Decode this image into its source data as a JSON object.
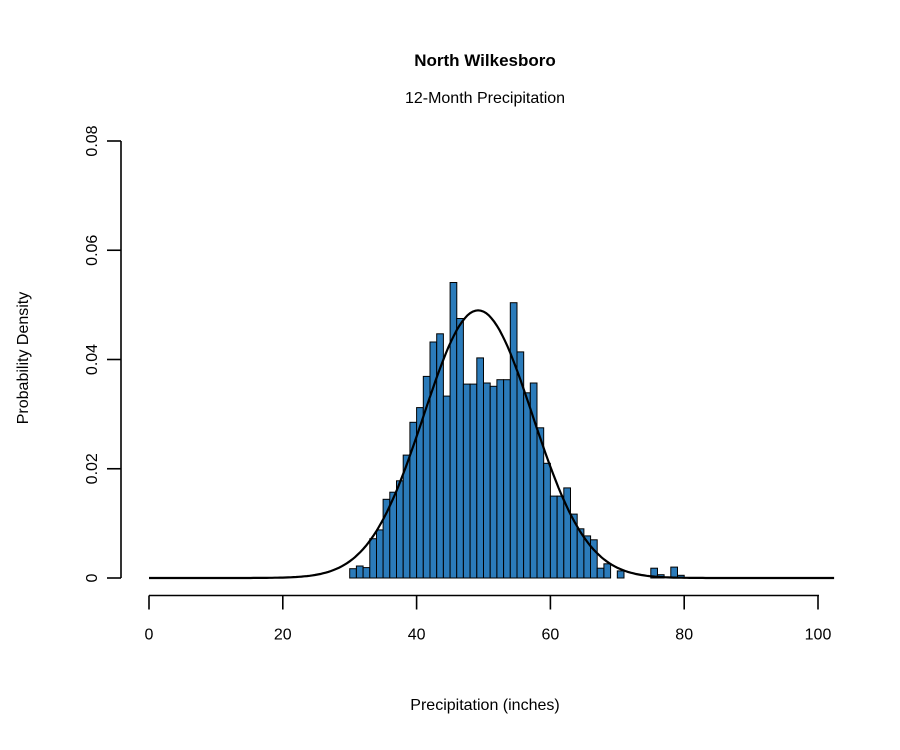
{
  "title": "North Wilkesboro",
  "subtitle": "12-Month Precipitation",
  "x_axis": {
    "label": "Precipitation (inches)",
    "ticks": [
      {
        "value": 0,
        "label": "0"
      },
      {
        "value": 20,
        "label": "20"
      },
      {
        "value": 40,
        "label": "40"
      },
      {
        "value": 60,
        "label": "60"
      },
      {
        "value": 80,
        "label": "80"
      },
      {
        "value": 100,
        "label": "100"
      }
    ],
    "range": [
      0,
      103
    ]
  },
  "y_axis": {
    "label": "Probability Density",
    "ticks": [
      {
        "value": 0.0,
        "label": "0"
      },
      {
        "value": 0.02,
        "label": "0.02"
      },
      {
        "value": 0.04,
        "label": "0.04"
      },
      {
        "value": 0.06,
        "label": "0.06"
      },
      {
        "value": 0.08,
        "label": "0.08"
      }
    ],
    "range": [
      0,
      0.08
    ]
  },
  "colors": {
    "bar_fill": "#2b7bba",
    "bar_border": "#000000",
    "curve": "#000000",
    "axis": "#000000",
    "background": "#ffffff"
  },
  "chart_data": {
    "type": "bar",
    "subtype": "histogram-with-normal-density-curve",
    "title": "North Wilkesboro",
    "subtitle": "12-Month Precipitation",
    "xlabel": "Precipitation (inches)",
    "ylabel": "Probability Density",
    "xlim": [
      0,
      103
    ],
    "ylim": [
      0,
      0.08
    ],
    "grid": false,
    "legend": "none",
    "bin_width": 1,
    "bin_start": [
      30,
      31,
      32,
      33,
      34,
      35,
      36,
      37,
      38,
      39,
      40,
      41,
      42,
      43,
      44,
      45,
      46,
      47,
      48,
      49,
      50,
      51,
      52,
      53,
      54,
      55,
      56,
      57,
      58,
      59,
      60,
      61,
      62,
      63,
      64,
      65,
      66,
      67,
      68,
      69,
      70,
      71,
      72,
      73,
      74,
      75,
      76,
      77,
      78,
      79
    ],
    "density": [
      0.0017,
      0.0022,
      0.0019,
      0.0072,
      0.0088,
      0.0144,
      0.0157,
      0.0178,
      0.0225,
      0.0285,
      0.0312,
      0.0369,
      0.0432,
      0.0447,
      0.0333,
      0.0541,
      0.0475,
      0.0355,
      0.0355,
      0.0403,
      0.0357,
      0.0351,
      0.0363,
      0.0363,
      0.0504,
      0.0414,
      0.0339,
      0.0357,
      0.0275,
      0.021,
      0.015,
      0.015,
      0.0165,
      0.0117,
      0.009,
      0.0077,
      0.007,
      0.0018,
      0.0026,
      0.0,
      0.0013,
      0.0,
      0.0,
      0.0,
      0.0,
      0.0018,
      0.0006,
      0.0,
      0.002,
      0.0005
    ],
    "curve": {
      "distribution": "normal",
      "mean": 49.2,
      "sd": 8.15,
      "peak_density": 0.049,
      "x_range": [
        0,
        102.8
      ]
    }
  }
}
